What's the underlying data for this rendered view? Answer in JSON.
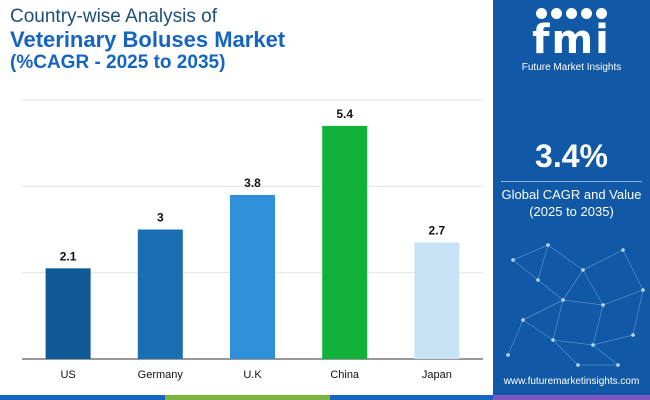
{
  "title": {
    "line1": "Country-wise Analysis of",
    "line2": "Veterinary Boluses Market",
    "line3": "(%CAGR - 2025 to 2035)"
  },
  "chart_data": {
    "type": "bar",
    "categories": [
      "US",
      "Germany",
      "U.K",
      "China",
      "Japan"
    ],
    "values": [
      2.1,
      3,
      3.8,
      5.4,
      2.7
    ],
    "labels": [
      "2.1",
      "3",
      "3.8",
      "5.4",
      "2.7"
    ],
    "colors": [
      "#0d5a96",
      "#1a6fb0",
      "#2f8fd8",
      "#12b23a",
      "#c7e1f5"
    ],
    "title": "Country-wise Analysis of Veterinary Boluses Market (%CAGR - 2025 to 2035)",
    "xlabel": "",
    "ylabel": "",
    "ylim": [
      0,
      6
    ],
    "grid": true
  },
  "side_panel": {
    "logo_text": "fmi",
    "brand": "Future Market Insights",
    "cagr_value": "3.4%",
    "cagr_label_line1": "Global CAGR and Value",
    "cagr_label_line2": "(2025 to 2035)",
    "website": "www.futuremarketinsights.com",
    "bg_color": "#1158a7"
  },
  "footer_colors": [
    "#1565c0",
    "#7cb342",
    "#1565c0",
    "#7e57c2"
  ]
}
